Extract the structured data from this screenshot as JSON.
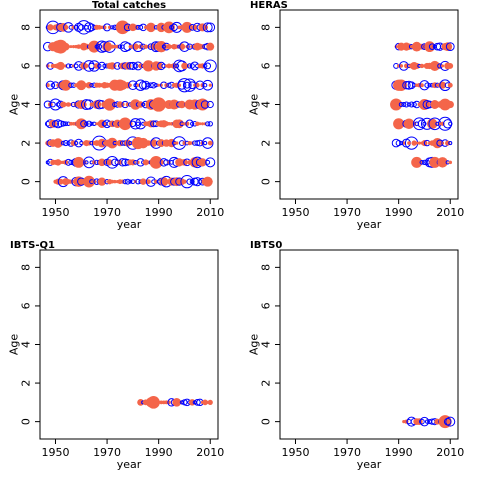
{
  "chart_data": [
    {
      "type": "scatter",
      "title": "Total catches",
      "xlabel": "year",
      "ylabel": "Age",
      "xlim": [
        1944,
        2013
      ],
      "ylim": [
        -0.9,
        8.9
      ],
      "xticks": [
        1950,
        1970,
        1990,
        2010
      ],
      "xtick_labels": [
        "1950",
        "1970",
        "1990",
        "2010"
      ],
      "yticks": [
        0,
        2,
        4,
        6,
        8
      ],
      "ytick_labels": [
        "0",
        "2",
        "4",
        "6",
        "8"
      ],
      "years": [
        1947,
        2010
      ],
      "ages": [
        0,
        8
      ],
      "legend": "none",
      "grid": false,
      "marker_colors": {
        "positive": "#F4654A",
        "negative": "#0000FF"
      }
    },
    {
      "type": "scatter",
      "title": "HERAS",
      "xlabel": "year",
      "ylabel": "Age",
      "xlim": [
        1944,
        2013
      ],
      "ylim": [
        -0.9,
        8.9
      ],
      "xticks": [
        1950,
        1970,
        1990,
        2010
      ],
      "xtick_labels": [
        "1950",
        "1970",
        "1990",
        "2010"
      ],
      "yticks": [
        0,
        2,
        4,
        6,
        8
      ],
      "ytick_labels": [
        "0",
        "2",
        "4",
        "6",
        "8"
      ],
      "years": [
        1989,
        2010
      ],
      "ages": [
        1,
        7
      ],
      "age1_start_year": 1997,
      "legend": "none",
      "grid": false,
      "marker_colors": {
        "positive": "#F4654A",
        "negative": "#0000FF"
      }
    },
    {
      "type": "scatter",
      "title": "IBTS-Q1",
      "xlabel": "year",
      "ylabel": "Age",
      "xlim": [
        1944,
        2013
      ],
      "ylim": [
        -0.9,
        8.9
      ],
      "xticks": [
        1950,
        1970,
        1990,
        2010
      ],
      "xtick_labels": [
        "1950",
        "1970",
        "1990",
        "2010"
      ],
      "yticks": [
        0,
        2,
        4,
        6,
        8
      ],
      "ytick_labels": [
        "0",
        "2",
        "4",
        "6",
        "8"
      ],
      "years": [
        1983,
        2010
      ],
      "ages": [
        1,
        1
      ],
      "legend": "none",
      "grid": false,
      "marker_colors": {
        "positive": "#F4654A",
        "negative": "#0000FF"
      }
    },
    {
      "type": "scatter",
      "title": "IBTS0",
      "xlabel": "year",
      "ylabel": "Age",
      "xlim": [
        1944,
        2013
      ],
      "ylim": [
        -0.9,
        8.9
      ],
      "xticks": [
        1950,
        1970,
        1990,
        2010
      ],
      "xtick_labels": [
        "1950",
        "1970",
        "1990",
        "2010"
      ],
      "yticks": [
        0,
        2,
        4,
        6,
        8
      ],
      "ytick_labels": [
        "0",
        "2",
        "4",
        "6",
        "8"
      ],
      "years": [
        1992,
        2010
      ],
      "ages": [
        0,
        0
      ],
      "legend": "none",
      "grid": false,
      "marker_colors": {
        "positive": "#F4654A",
        "negative": "#0000FF"
      }
    }
  ]
}
